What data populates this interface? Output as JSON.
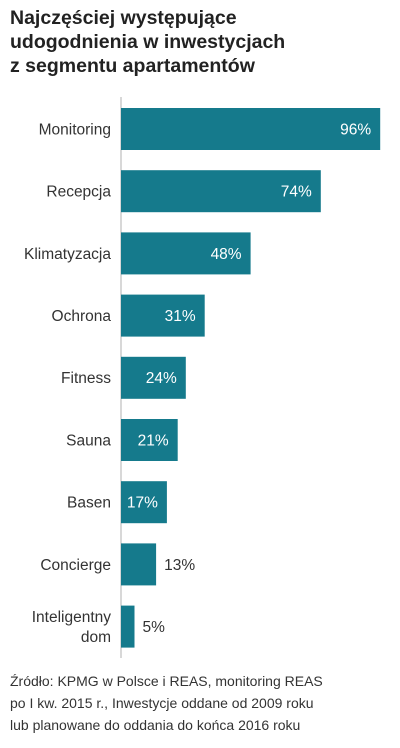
{
  "title_lines": [
    "Najczęściej występujące",
    "udogodnienia w inwestycjach",
    "z segmentu apartamentów"
  ],
  "source_lines": [
    "Źródło: KPMG w Polsce i REAS, monitoring REAS",
    "po I kw. 2015 r., Inwestycje oddane od 2009 roku",
    "lub planowane do oddania do końca 2016 roku"
  ],
  "colors": {
    "bar": "#157a8c",
    "axis": "#b0b0b0",
    "label_inside": "#ffffff",
    "label_outside": "#333333",
    "category_text": "#333333"
  },
  "chart_data": {
    "type": "bar",
    "orientation": "horizontal",
    "categories": [
      [
        "Monitoring"
      ],
      [
        "Recepcja"
      ],
      [
        "Klimatyzacja"
      ],
      [
        "Ochrona"
      ],
      [
        "Fitness"
      ],
      [
        "Sauna"
      ],
      [
        "Basen"
      ],
      [
        "Concierge"
      ],
      [
        "Inteligentny",
        "dom"
      ]
    ],
    "values": [
      96,
      74,
      48,
      31,
      24,
      21,
      17,
      13,
      5
    ],
    "value_labels": [
      "96%",
      "74%",
      "48%",
      "31%",
      "24%",
      "21%",
      "17%",
      "13%",
      "5%"
    ],
    "xlim": [
      0,
      100
    ],
    "unit": "%",
    "grid": false,
    "legend": false
  }
}
